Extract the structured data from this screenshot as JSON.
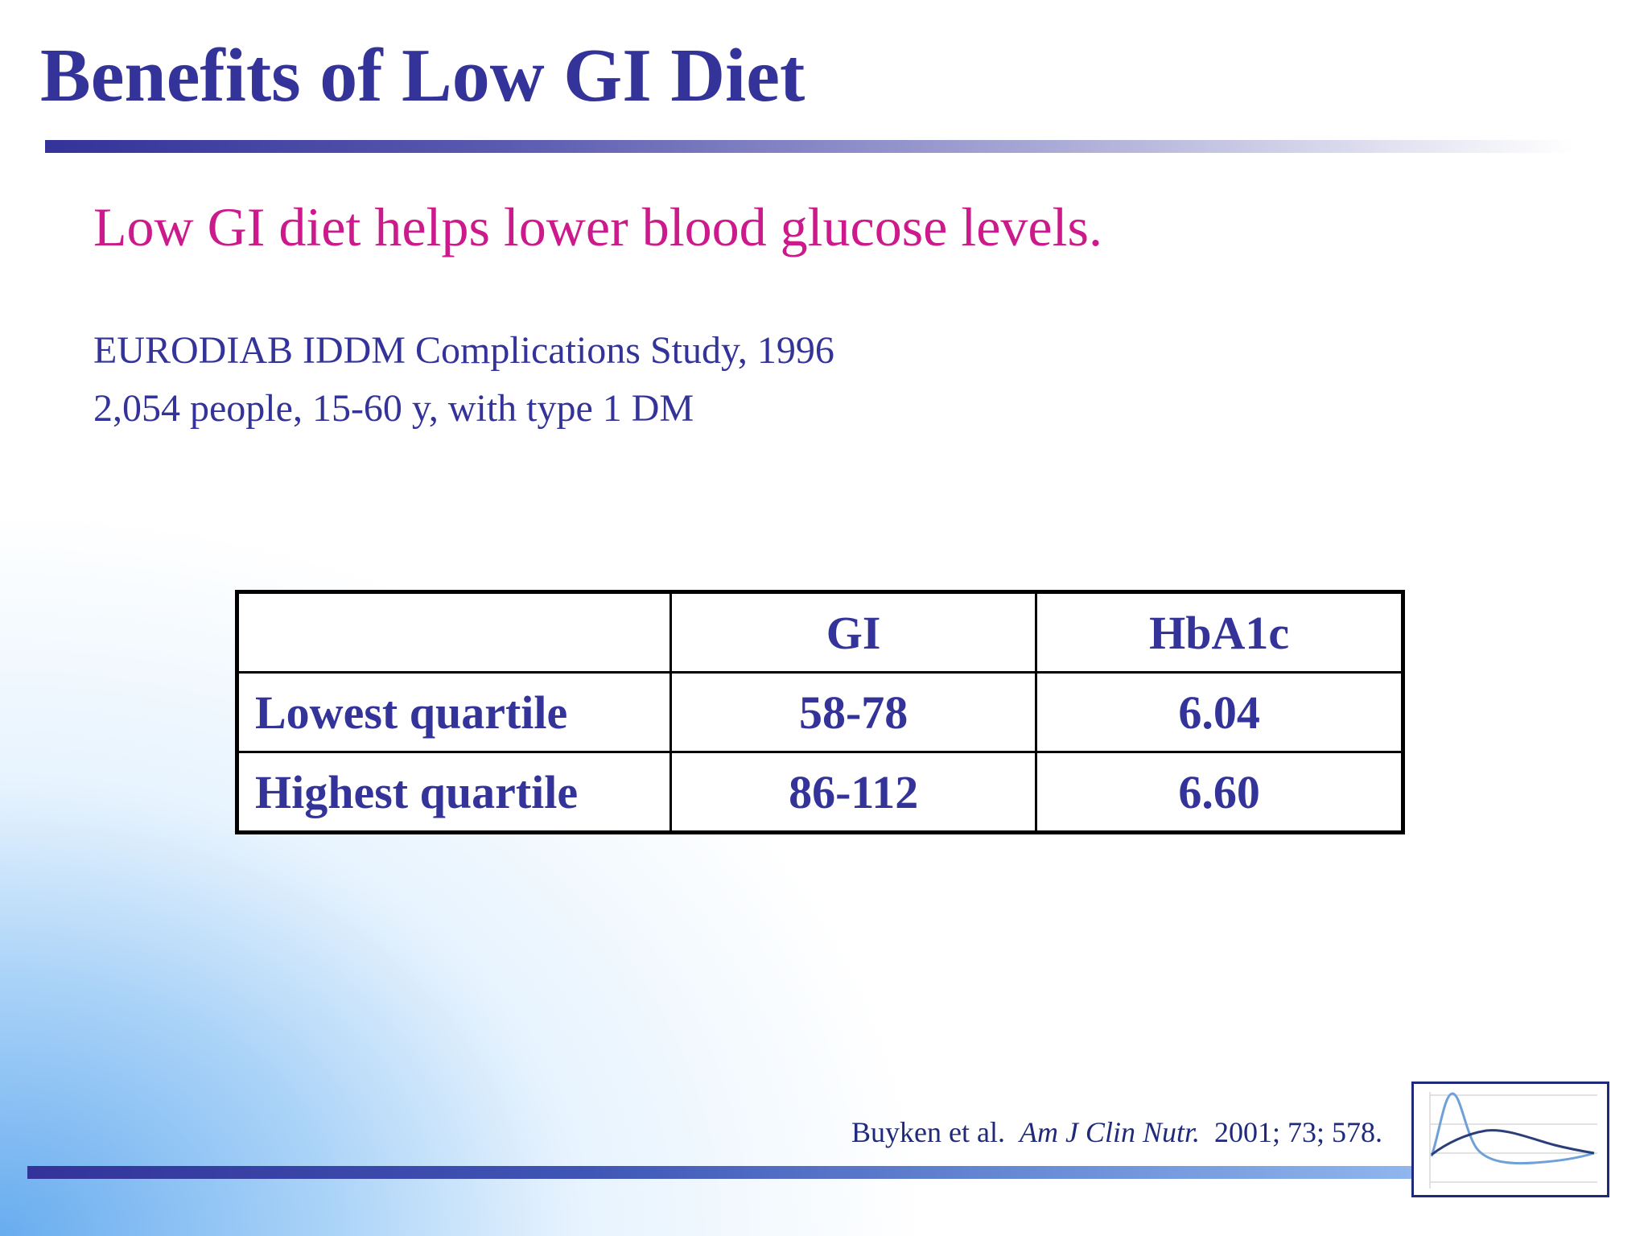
{
  "slide": {
    "title": "Benefits of Low GI Diet",
    "subtitle": "Low GI diet helps lower blood glucose levels.",
    "study_line_1": "EURODIAB IDDM Complications Study, 1996",
    "study_line_2": "2,054 people, 15-60 y, with type 1 DM"
  },
  "table": {
    "header": {
      "empty": "",
      "gi": "GI",
      "hba1c": "HbA1c"
    },
    "rows": [
      {
        "label": "Lowest quartile",
        "gi": "58-78",
        "hba1c": "6.04"
      },
      {
        "label": "Highest quartile",
        "gi": "86-112",
        "hba1c": "6.60"
      }
    ]
  },
  "citation": {
    "authors": "Buyken et al.",
    "journal": "Am J Clin Nutr.",
    "details": "2001; 73; 578."
  },
  "logo": {
    "icon": "glucose-curve-icon"
  },
  "colors": {
    "title": "#333399",
    "subtitle": "#cc1a8c",
    "body_text": "#333399",
    "background_glow": "#60a8ee"
  }
}
